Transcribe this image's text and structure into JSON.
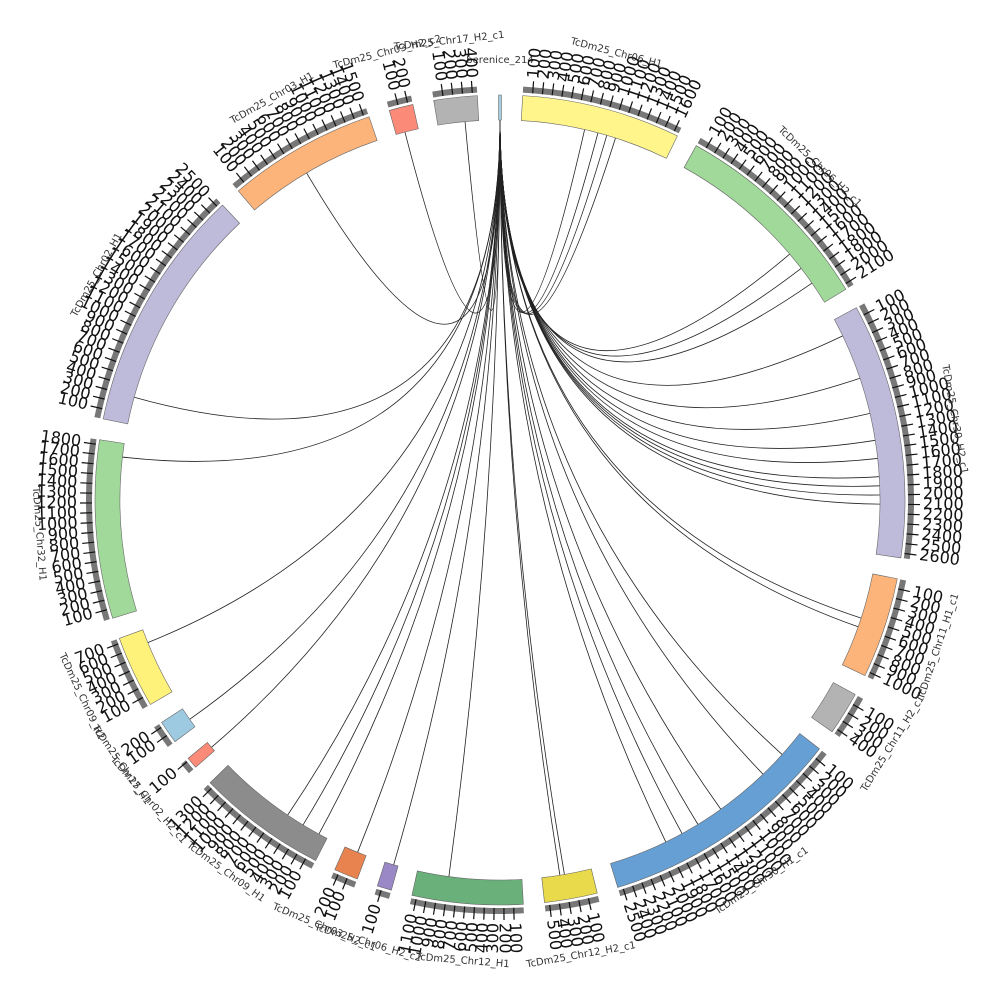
{
  "segments": [
    {
      "name": "berenice_214",
      "color": "#a6cee3",
      "length": 30,
      "ticks": []
    },
    {
      "name": "TcDm25_Chr06_H1",
      "color": "#fff58a",
      "length": 1650,
      "ticks": [
        100,
        200,
        300,
        400,
        500,
        600,
        700,
        800,
        900,
        1000,
        1100,
        1200,
        1300,
        1400,
        1500,
        1600
      ]
    },
    {
      "name": "TcDm25_Chr06_H2_c1",
      "color": "#a1d99b",
      "length": 2150,
      "ticks": [
        100,
        200,
        300,
        400,
        500,
        600,
        700,
        800,
        900,
        1000,
        1100,
        1200,
        1300,
        1400,
        1500,
        1600,
        1700,
        1800,
        1900,
        2000,
        2100
      ]
    },
    {
      "name": "TcDm25_Chr30_H2_c1",
      "color": "#bebada",
      "length": 2650,
      "ticks": [
        100,
        200,
        300,
        400,
        500,
        600,
        700,
        800,
        900,
        1000,
        1100,
        1200,
        1300,
        1400,
        1500,
        1600,
        1700,
        1800,
        1900,
        2000,
        2100,
        2200,
        2300,
        2400,
        2500,
        2600
      ]
    },
    {
      "name": "TcDm25_Chr11_H1_c1",
      "color": "#fdb47a",
      "length": 1050,
      "ticks": [
        100,
        200,
        300,
        400,
        500,
        600,
        700,
        800,
        900,
        1000
      ]
    },
    {
      "name": "TcDm25_Chr11_H2_c1",
      "color": "#b3b3b3",
      "length": 450,
      "ticks": [
        100,
        200,
        300,
        400
      ]
    },
    {
      "name": "TcDm25_Chr30_H1_c1",
      "color": "#659fd3",
      "length": 2550,
      "ticks": [
        100,
        200,
        300,
        400,
        500,
        600,
        700,
        800,
        900,
        1000,
        1100,
        1200,
        1300,
        1400,
        1500,
        1600,
        1700,
        1800,
        1900,
        2000,
        2100,
        2200,
        2300,
        2400,
        2500
      ]
    },
    {
      "name": "TcDm25_Chr12_H2_c1",
      "color": "#e8da4a",
      "length": 550,
      "ticks": [
        100,
        200,
        300,
        400,
        500
      ]
    },
    {
      "name": "TcDm25_Chr12_H1",
      "color": "#6ab07b",
      "length": 1150,
      "ticks": [
        100,
        200,
        300,
        400,
        500,
        600,
        700,
        800,
        900,
        1000,
        1100
      ]
    },
    {
      "name": "TcDm25_Chr06_H2_c2",
      "color": "#9a87c6",
      "length": 150,
      "ticks": [
        100
      ]
    },
    {
      "name": "TcDm25_Chr03_H2_c1",
      "color": "#e8834f",
      "length": 250,
      "ticks": [
        100,
        200
      ]
    },
    {
      "name": "TcDm25_Chr09_H1",
      "color": "#8c8c8c",
      "length": 1350,
      "ticks": [
        100,
        200,
        300,
        400,
        500,
        600,
        700,
        800,
        900,
        1000,
        1100,
        1200,
        1300
      ]
    },
    {
      "name": "TcDm25_Chr02_H2_c1",
      "color": "#fb8a78",
      "length": 120,
      "ticks": [
        100
      ]
    },
    {
      "name": "TcDm25_Chr17_H1",
      "color": "#9ecae1",
      "length": 240,
      "ticks": [
        100,
        200
      ]
    },
    {
      "name": "TcDm25_Chr09_H2",
      "color": "#fff27a",
      "length": 750,
      "ticks": [
        100,
        200,
        300,
        400,
        500,
        600,
        700
      ]
    },
    {
      "name": "TcDm25_Chr32_H1",
      "color": "#a1d99b",
      "length": 1850,
      "ticks": [
        100,
        200,
        300,
        400,
        500,
        600,
        700,
        800,
        900,
        1000,
        1100,
        1200,
        1300,
        1400,
        1500,
        1600,
        1700,
        1800
      ]
    },
    {
      "name": "TcDm25_Chr02_H1",
      "color": "#bebada",
      "length": 2550,
      "ticks": [
        100,
        200,
        300,
        400,
        500,
        600,
        700,
        800,
        900,
        1000,
        1100,
        1200,
        1300,
        1400,
        1500,
        1600,
        1700,
        1800,
        1900,
        2000,
        2100,
        2200,
        2300,
        2400,
        2500
      ]
    },
    {
      "name": "TcDm25_Chr03_H1",
      "color": "#fdb47a",
      "length": 1550,
      "ticks": [
        100,
        200,
        300,
        400,
        500,
        600,
        700,
        800,
        900,
        1000,
        1100,
        1200,
        1300,
        1400,
        1500
      ]
    },
    {
      "name": "TcDm25_Chr03_H2_c2",
      "color": "#fb8a78",
      "length": 250,
      "ticks": [
        100,
        200
      ]
    },
    {
      "name": "TcDm25_Chr17_H2_c1",
      "color": "#b3b3b3",
      "length": 450,
      "ticks": [
        100,
        200,
        300,
        400
      ]
    }
  ],
  "links": [
    {
      "target": 1,
      "position": 700
    },
    {
      "target": 1,
      "position": 850
    },
    {
      "target": 1,
      "position": 950
    },
    {
      "target": 1,
      "position": 1050
    },
    {
      "target": 2,
      "position": 1500
    },
    {
      "target": 2,
      "position": 1700
    },
    {
      "target": 2,
      "position": 1900
    },
    {
      "target": 3,
      "position": 200
    },
    {
      "target": 3,
      "position": 700
    },
    {
      "target": 3,
      "position": 1100
    },
    {
      "target": 3,
      "position": 1400
    },
    {
      "target": 3,
      "position": 1600
    },
    {
      "target": 3,
      "position": 1800
    },
    {
      "target": 3,
      "position": 1900
    },
    {
      "target": 3,
      "position": 2000
    },
    {
      "target": 3,
      "position": 2100
    },
    {
      "target": 4,
      "position": 500
    },
    {
      "target": 4,
      "position": 600
    },
    {
      "target": 6,
      "position": 300
    },
    {
      "target": 6,
      "position": 600
    },
    {
      "target": 6,
      "position": 1200
    },
    {
      "target": 6,
      "position": 1500
    },
    {
      "target": 6,
      "position": 1700
    },
    {
      "target": 6,
      "position": 1900
    },
    {
      "target": 7,
      "position": 300
    },
    {
      "target": 7,
      "position": 350
    },
    {
      "target": 8,
      "position": 800
    },
    {
      "target": 9,
      "position": 50
    },
    {
      "target": 10,
      "position": 100
    },
    {
      "target": 11,
      "position": 100
    },
    {
      "target": 11,
      "position": 300
    },
    {
      "target": 11,
      "position": 500
    },
    {
      "target": 12,
      "position": 50
    },
    {
      "target": 13,
      "position": 100
    },
    {
      "target": 14,
      "position": 600
    },
    {
      "target": 15,
      "position": 1700
    },
    {
      "target": 16,
      "position": 300
    },
    {
      "target": 17,
      "position": 700
    },
    {
      "target": 18,
      "position": 100
    },
    {
      "target": 19,
      "position": 300
    }
  ]
}
